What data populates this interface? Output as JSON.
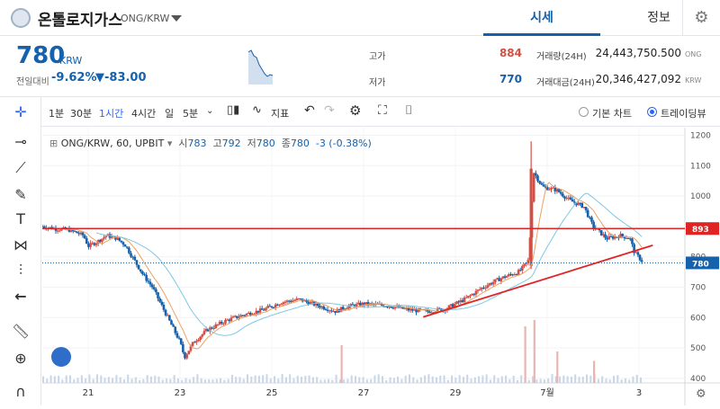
{
  "header": {
    "coin_name": "온톨로지가스",
    "pair": "ONG/KRW",
    "tabs": [
      "시세",
      "정보"
    ]
  },
  "price": {
    "current": "780",
    "currency": "KRW",
    "change_label": "전일대비",
    "change_rate": "-9.62%",
    "change_amount": "▼-83.00",
    "high_label": "고가",
    "high": "884",
    "low_label": "저가",
    "low": "770",
    "volume_label": "거래량(24H)",
    "volume": "24,443,750.500",
    "volume_unit": "ONG",
    "amount_label": "거래대금(24H)",
    "amount": "20,346,427,092",
    "amount_unit": "KRW"
  },
  "toolbar": {
    "intervals": [
      "1분",
      "30분",
      "1시간",
      "4시간",
      "일",
      "5분"
    ],
    "selected_interval": "1시간",
    "indicator_label": "지표",
    "basic_chart": "기본 차트",
    "tradingview": "트레이딩뷰"
  },
  "legend": {
    "symbol": "ONG/KRW, 60, UPBIT",
    "open_label": "시",
    "open": "783",
    "high_label": "고",
    "high": "792",
    "low_label": "저",
    "low": "780",
    "close_label": "종",
    "close": "780",
    "change": "-3 (-0.38%)"
  },
  "colors": {
    "up": "#d24f45",
    "down": "#1561ab",
    "resistance": "#e02424",
    "ma_fast": "#f0a060",
    "ma_slow": "#7ec8e3"
  },
  "chart_data": {
    "type": "candlestick",
    "x_ticks": [
      "21",
      "23",
      "25",
      "27",
      "29",
      "7월",
      "3"
    ],
    "y_ticks": [
      "1200",
      "1100",
      "1000",
      "900",
      "800",
      "700",
      "600",
      "500",
      "400"
    ],
    "ylim": [
      385,
      1225
    ],
    "price_tag_resistance": "893",
    "price_tag_current": "780",
    "resistance_level": 893,
    "current_level": 780,
    "trend_line": {
      "from": [
        28.3,
        602
      ],
      "to": [
        33.3,
        838
      ]
    },
    "price_path": [
      [
        20.0,
        900
      ],
      [
        20.3,
        892
      ],
      [
        20.6,
        888
      ],
      [
        20.9,
        870
      ],
      [
        21.0,
        835
      ],
      [
        21.2,
        850
      ],
      [
        21.4,
        870
      ],
      [
        21.6,
        862
      ],
      [
        21.8,
        840
      ],
      [
        22.0,
        790
      ],
      [
        22.2,
        740
      ],
      [
        22.4,
        700
      ],
      [
        22.6,
        640
      ],
      [
        22.8,
        580
      ],
      [
        23.0,
        520
      ],
      [
        23.1,
        470
      ],
      [
        23.3,
        520
      ],
      [
        23.6,
        560
      ],
      [
        24.0,
        590
      ],
      [
        24.4,
        610
      ],
      [
        24.8,
        625
      ],
      [
        25.2,
        650
      ],
      [
        25.6,
        660
      ],
      [
        26.0,
        640
      ],
      [
        26.4,
        620
      ],
      [
        26.6,
        635
      ],
      [
        27.0,
        645
      ],
      [
        27.5,
        640
      ],
      [
        28.0,
        625
      ],
      [
        28.4,
        620
      ],
      [
        28.8,
        630
      ],
      [
        29.2,
        660
      ],
      [
        29.6,
        700
      ],
      [
        30.0,
        730
      ],
      [
        30.4,
        752
      ],
      [
        30.6,
        790
      ],
      [
        30.7,
        1080
      ],
      [
        30.9,
        1030
      ],
      [
        31.2,
        1020
      ],
      [
        31.5,
        985
      ],
      [
        31.8,
        965
      ],
      [
        32.0,
        900
      ],
      [
        32.3,
        860
      ],
      [
        32.6,
        870
      ],
      [
        32.8,
        862
      ],
      [
        32.9,
        815
      ],
      [
        33.1,
        780
      ]
    ],
    "volume_spikes": [
      [
        26.5,
        0.6
      ],
      [
        30.5,
        0.9
      ],
      [
        30.7,
        1.0
      ],
      [
        31.2,
        0.5
      ],
      [
        32.0,
        0.35
      ]
    ]
  }
}
